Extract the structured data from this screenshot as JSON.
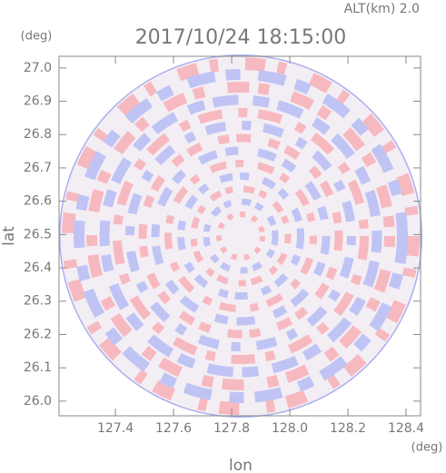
{
  "chart_data": {
    "type": "radar-ppi",
    "title": "2017/10/24 18:15:00",
    "subtitle": "ALT(km) 2.0",
    "x_label": "lon",
    "y_label": "lat",
    "x_unit": "(deg)",
    "y_unit": "(deg)",
    "xlim": [
      127.206,
      128.45
    ],
    "ylim": [
      25.956,
      27.035
    ],
    "xticks": [
      127.4,
      127.6,
      127.8,
      {
        "value": 128.0,
        "label": "128.0"
      },
      128.2,
      128.4
    ],
    "yticks": [
      {
        "value": 26.0,
        "label": "26.0"
      },
      26.1,
      26.2,
      26.3,
      26.4,
      26.5,
      26.6,
      26.7,
      26.8,
      26.9,
      {
        "value": 27.0,
        "label": "27.0"
      }
    ]
  }
}
